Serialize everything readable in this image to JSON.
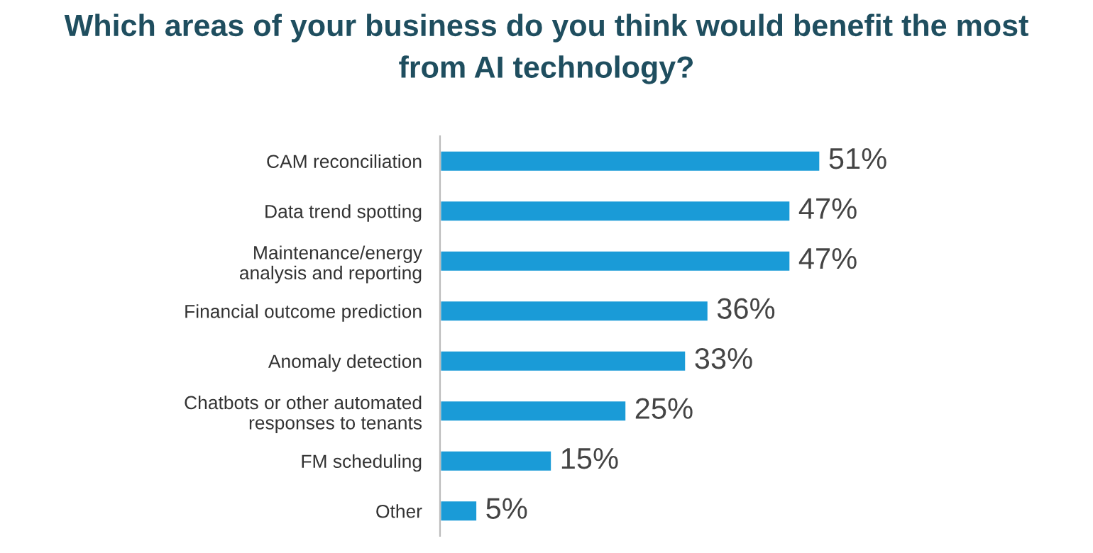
{
  "chart_data": {
    "type": "bar",
    "orientation": "horizontal",
    "title": "Which areas of your business do you think would benefit the most\nfrom AI technology?",
    "categories": [
      "CAM reconciliation",
      "Data trend spotting",
      "Maintenance/energy\nanalysis and reporting",
      "Financial outcome prediction",
      "Anomaly detection",
      "Chatbots or other automated\nresponses to tenants",
      "FM scheduling",
      "Other"
    ],
    "values": [
      51,
      47,
      47,
      36,
      33,
      25,
      15,
      5
    ],
    "value_labels": [
      "51%",
      "47%",
      "47%",
      "36%",
      "33%",
      "25%",
      "15%",
      "5%"
    ],
    "color": "#1a9bd7",
    "grid": false,
    "legend": false
  }
}
